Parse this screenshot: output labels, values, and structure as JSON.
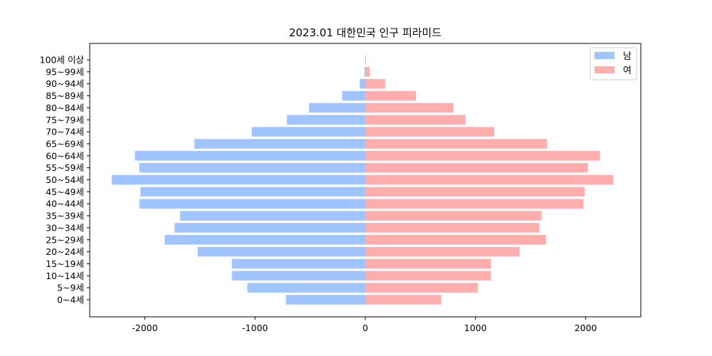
{
  "chart_data": {
    "type": "bar",
    "orientation": "horizontal",
    "title": "2023.01 대한민국 인구 피라미드",
    "xlabel": "",
    "ylabel": "",
    "xlim": [
      -2500,
      2500
    ],
    "xticks": [
      -2000,
      -1000,
      0,
      1000,
      2000
    ],
    "xtick_labels": [
      "-2000",
      "-1000",
      "0",
      "1000",
      "2000"
    ],
    "grid": false,
    "legend_position": "top-right",
    "categories": [
      "0~4세",
      "5~9세",
      "10~14세",
      "15~19세",
      "20~24세",
      "25~29세",
      "30~34세",
      "35~39세",
      "40~44세",
      "45~49세",
      "50~54세",
      "55~59세",
      "60~64세",
      "65~69세",
      "70~74세",
      "75~79세",
      "80~84세",
      "85~89세",
      "90~94세",
      "95~99세",
      "100세 이상"
    ],
    "series": [
      {
        "name": "남",
        "color": "#a0c4ff",
        "values": [
          -720,
          -1070,
          -1210,
          -1210,
          -1520,
          -1820,
          -1730,
          -1680,
          -2050,
          -2040,
          -2300,
          -2050,
          -2090,
          -1550,
          -1030,
          -710,
          -510,
          -210,
          -50,
          -8,
          -1
        ]
      },
      {
        "name": "여",
        "color": "#ffadad",
        "values": [
          690,
          1020,
          1140,
          1140,
          1400,
          1640,
          1580,
          1600,
          1980,
          1990,
          2250,
          2020,
          2130,
          1650,
          1170,
          910,
          800,
          460,
          180,
          40,
          6
        ]
      }
    ]
  }
}
